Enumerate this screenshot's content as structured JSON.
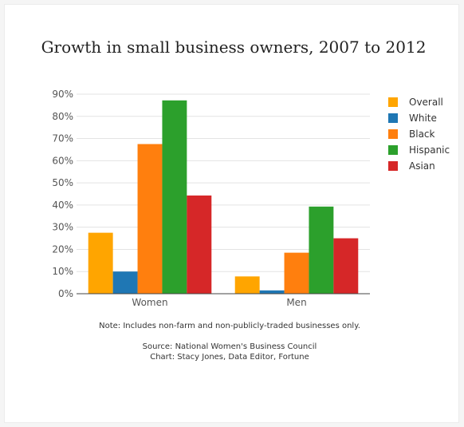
{
  "chart_data": {
    "type": "bar",
    "title": "Growth in small business owners, 2007 to 2012",
    "xlabel": "",
    "ylabel": "",
    "categories": [
      "Women",
      "Men"
    ],
    "series": [
      {
        "name": "Overall",
        "color": "#ffa500",
        "values": [
          27.5,
          7.8
        ]
      },
      {
        "name": "White",
        "color": "#1f77b4",
        "values": [
          10.0,
          1.5
        ]
      },
      {
        "name": "Black",
        "color": "#ff7f0e",
        "values": [
          67.5,
          18.5
        ]
      },
      {
        "name": "Hispanic",
        "color": "#2ca02c",
        "values": [
          87.2,
          39.3
        ]
      },
      {
        "name": "Asian",
        "color": "#d62728",
        "values": [
          44.3,
          25.0
        ]
      }
    ],
    "ylim": [
      0,
      90
    ],
    "ytick_step": 10,
    "ytick_suffix": "%",
    "grid": true,
    "legend_position": "top-right"
  },
  "notes": {
    "note": "Note: Includes non-farm and non-publicly-traded businesses only.",
    "source": "Source: National Women's Business Council",
    "credit": "Chart: Stacy Jones, Data Editor, Fortune"
  }
}
